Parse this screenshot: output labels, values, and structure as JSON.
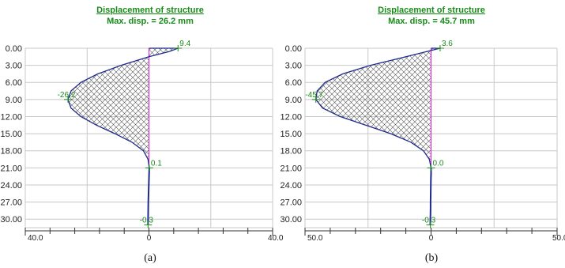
{
  "chart_data": [
    {
      "type": "area",
      "title": "Displacement of structure",
      "subtitle": "Max. disp. = 26.2 mm",
      "caption": "(a)",
      "xlim": [
        -40.0,
        40.0
      ],
      "ylim": [
        0,
        31.5
      ],
      "y_inverted": true,
      "y_ticks": [
        "0.00",
        "3.00",
        "6.00",
        "9.00",
        "12.00",
        "15.00",
        "18.00",
        "21.00",
        "24.00",
        "27.00",
        "30.00"
      ],
      "x_tick_labels": [
        "40.0",
        "0",
        "40.0"
      ],
      "profile": {
        "depth": [
          0,
          0.6,
          1.5,
          3,
          4.5,
          6,
          7.5,
          9,
          10.5,
          12,
          13.5,
          15,
          16.5,
          18,
          19.5,
          21,
          22,
          23,
          24,
          25,
          26,
          27,
          28,
          29,
          30,
          31
        ],
        "disp": [
          9.4,
          6.5,
          0,
          -9,
          -16.5,
          -22,
          -25.2,
          -26.2,
          -25.2,
          -22,
          -17,
          -11,
          -5.5,
          -1.8,
          -0.3,
          0.1,
          0.05,
          0,
          -0.05,
          -0.1,
          -0.15,
          -0.2,
          -0.22,
          -0.25,
          -0.28,
          -0.3
        ]
      },
      "annotations": [
        {
          "text": "9.4",
          "disp": 9.4,
          "depth": 0
        },
        {
          "text": "-26.2",
          "disp": -26.2,
          "depth": 9
        },
        {
          "text": "0.1",
          "disp": 0.1,
          "depth": 21
        },
        {
          "text": "-0.3",
          "disp": -0.3,
          "depth": 31
        }
      ]
    },
    {
      "type": "area",
      "title": "Displacement of structure",
      "subtitle": "Max. disp. = 45.7 mm",
      "caption": "(b)",
      "xlim": [
        -50.0,
        50.0
      ],
      "ylim": [
        0,
        31.5
      ],
      "y_inverted": true,
      "y_ticks": [
        "0.00",
        "3.00",
        "6.00",
        "9.00",
        "12.00",
        "15.00",
        "18.00",
        "21.00",
        "24.00",
        "27.00",
        "30.00"
      ],
      "x_tick_labels": [
        "50.0",
        "0",
        "50.0"
      ],
      "profile": {
        "depth": [
          0,
          1.5,
          3,
          4.5,
          6,
          7.5,
          9,
          10.5,
          12,
          13.5,
          15,
          16.5,
          18,
          19.5,
          21,
          22,
          23,
          24,
          25,
          26,
          27,
          28,
          29,
          30,
          31
        ],
        "disp": [
          3.6,
          -10,
          -24,
          -35,
          -42,
          -45.2,
          -45.7,
          -43,
          -36,
          -26,
          -16,
          -8,
          -3,
          -0.7,
          0,
          0,
          -0.05,
          -0.1,
          -0.12,
          -0.15,
          -0.18,
          -0.2,
          -0.23,
          -0.27,
          -0.3
        ]
      },
      "annotations": [
        {
          "text": "3.6",
          "disp": 3.6,
          "depth": 0
        },
        {
          "text": "-45.7",
          "disp": -45.7,
          "depth": 9
        },
        {
          "text": "0.0",
          "disp": 0.0,
          "depth": 21
        },
        {
          "text": "-0.3",
          "disp": -0.3,
          "depth": 31
        }
      ]
    }
  ],
  "colors": {
    "curve": "#1e2a8c",
    "axis_line": "#cc33cc",
    "label": "#1a8a1a",
    "grid": "#c8c8c8",
    "hatch": "#555555",
    "pile": "#1e2a8c"
  }
}
